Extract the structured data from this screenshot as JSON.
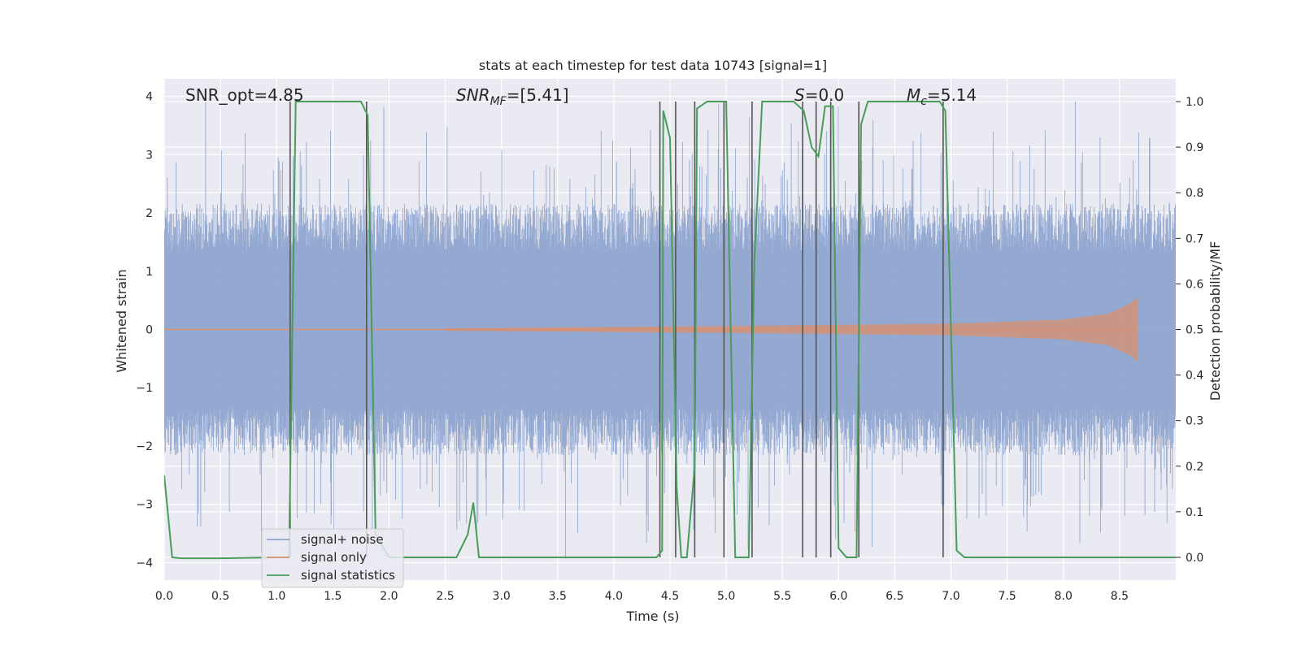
{
  "chart_data": {
    "type": "line",
    "title": "stats at each timestep for test data 10743 [signal=1]",
    "xlabel": "Time (s)",
    "ylabel": "Whitened strain",
    "y2label": "Detection probability/MF",
    "xlim": [
      0.0,
      9.0
    ],
    "ylim": [
      -4.3,
      4.3
    ],
    "y2lim": [
      -0.05,
      1.05
    ],
    "xticks": [
      "0.0",
      "0.5",
      "1.0",
      "1.5",
      "2.0",
      "2.5",
      "3.0",
      "3.5",
      "4.0",
      "4.5",
      "5.0",
      "5.5",
      "6.0",
      "6.5",
      "7.0",
      "7.5",
      "8.0",
      "8.5"
    ],
    "yticks": [
      "4",
      "3",
      "2",
      "1",
      "0",
      "−1",
      "−2",
      "−3",
      "−4"
    ],
    "y2ticks": [
      "1.0",
      "0.9",
      "0.8",
      "0.7",
      "0.6",
      "0.5",
      "0.4",
      "0.3",
      "0.2",
      "0.1",
      "0.0"
    ],
    "grid": true,
    "legend_position": "lower-left",
    "annotations": {
      "snr_opt": "SNR_opt=4.85",
      "snr_mf_main": "SNR",
      "snr_mf_sub": "MF",
      "snr_mf_value": "=[5.41]",
      "s_main": "S",
      "s_value": "=0.0",
      "mc_main": "M",
      "mc_sub": "c",
      "mc_value": "=5.14"
    },
    "series": [
      {
        "name": "signal+ noise",
        "color": "#8fa5cf",
        "kind": "noise-band",
        "typical_amplitude": 1.8,
        "peak_amplitude": 3.6
      },
      {
        "name": "signal only",
        "color": "#d9906e",
        "kind": "chirp",
        "x_start": 2.5,
        "x_end": 8.66,
        "amplitude": [
          [
            2.5,
            0.02
          ],
          [
            5.0,
            0.06
          ],
          [
            7.0,
            0.1
          ],
          [
            8.0,
            0.17
          ],
          [
            8.4,
            0.27
          ],
          [
            8.6,
            0.45
          ],
          [
            8.66,
            0.55
          ]
        ]
      },
      {
        "name": "signal statistics",
        "color": "#4a9c5a",
        "axis": "right",
        "x": [
          0.0,
          0.07,
          0.15,
          0.5,
          1.0,
          1.11,
          1.17,
          1.2,
          1.5,
          1.75,
          1.81,
          1.88,
          2.0,
          2.6,
          2.7,
          2.75,
          2.8,
          4.38,
          4.43,
          4.44,
          4.5,
          4.56,
          4.6,
          4.65,
          4.72,
          4.74,
          4.83,
          4.9,
          5.0,
          5.08,
          5.15,
          5.2,
          5.25,
          5.32,
          5.6,
          5.69,
          5.76,
          5.82,
          5.88,
          5.95,
          6.0,
          6.07,
          6.16,
          6.2,
          6.26,
          6.5,
          6.9,
          6.95,
          7.05,
          7.12,
          7.5,
          8.0,
          8.5,
          9.0
        ],
        "y": [
          0.18,
          0.0,
          -0.002,
          -0.002,
          0.0,
          0.0,
          1.0,
          1.0,
          1.0,
          1.0,
          0.97,
          0.05,
          0.0,
          0.0,
          0.05,
          0.12,
          0.0,
          0.0,
          0.015,
          0.98,
          0.92,
          0.15,
          0.0,
          0.0,
          0.2,
          0.985,
          1.0,
          1.0,
          1.0,
          0.0,
          0.0,
          0.0,
          0.65,
          1.0,
          1.0,
          0.98,
          0.9,
          0.88,
          0.99,
          0.99,
          0.02,
          0.0,
          0.0,
          0.95,
          1.0,
          1.0,
          1.0,
          0.98,
          0.015,
          0.0,
          0.0,
          0.0,
          0.0,
          0.0
        ]
      }
    ],
    "vertical_lines": [
      1.12,
      1.8,
      4.41,
      4.55,
      4.72,
      4.98,
      5.23,
      5.68,
      5.8,
      5.93,
      6.18,
      6.93
    ]
  }
}
